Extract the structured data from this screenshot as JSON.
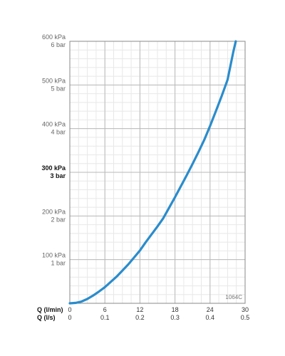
{
  "chart_data": {
    "type": "line",
    "title": "",
    "code_label": "1064C",
    "xlim": [
      0,
      30
    ],
    "ylim": [
      0,
      600
    ],
    "x_ticks": [
      0,
      6,
      12,
      18,
      24,
      30
    ],
    "x_tick_labels_lmin": [
      "0",
      "6",
      "12",
      "18",
      "24",
      "30"
    ],
    "x_tick_labels_ls": [
      "0",
      "0.1",
      "0.2",
      "0.3",
      "0.4",
      "0.5"
    ],
    "xlabel_lmin": "Q (l/min)",
    "xlabel_ls": "Q (l/s)",
    "y_ticks": [
      {
        "value": 100,
        "kpa": "100 kPa",
        "bar": "1 bar",
        "bold": false
      },
      {
        "value": 200,
        "kpa": "200 kPa",
        "bar": "2 bar",
        "bold": false
      },
      {
        "value": 300,
        "kpa": "300 kPa",
        "bar": "3 bar",
        "bold": true
      },
      {
        "value": 400,
        "kpa": "400 kPa",
        "bar": "4 bar",
        "bold": false
      },
      {
        "value": 500,
        "kpa": "500 kPa",
        "bar": "5 bar",
        "bold": false
      },
      {
        "value": 600,
        "kpa": "600 kPa",
        "bar": "6 bar",
        "bold": false
      }
    ],
    "grid": true,
    "series": [
      {
        "color": "#2a8ccc",
        "x": [
          0,
          1,
          2,
          3,
          4,
          5,
          6,
          7,
          8,
          9,
          10,
          11,
          12,
          13,
          14,
          15,
          16,
          17,
          18,
          19,
          20,
          21,
          22,
          23,
          24,
          25,
          26,
          27,
          28,
          28.4
        ],
        "y": [
          0,
          1,
          4,
          10,
          18,
          27,
          37,
          49,
          61,
          75,
          89,
          105,
          121,
          140,
          158,
          176,
          195,
          219,
          243,
          268,
          293,
          319,
          346,
          374,
          406,
          440,
          475,
          512,
          577,
          600
        ]
      }
    ]
  }
}
